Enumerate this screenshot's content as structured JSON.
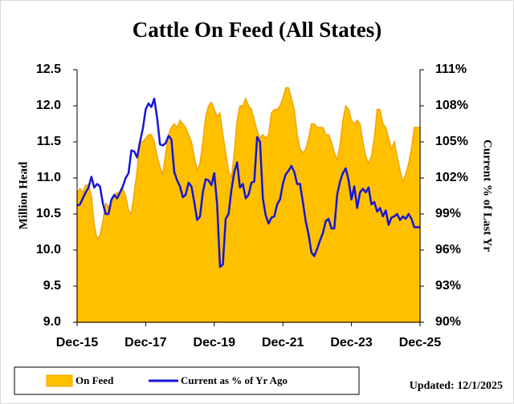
{
  "chart_data": {
    "type": "combo",
    "title": "Cattle On Feed (All States)",
    "y_label": "Million Head",
    "y2_label": "Current % of Last Yr",
    "note": "Updated: 12/1/2025",
    "categories": [
      "Dec-15",
      null,
      null,
      null,
      null,
      null,
      null,
      null,
      null,
      null,
      null,
      null,
      null,
      null,
      null,
      null,
      null,
      null,
      null,
      null,
      null,
      null,
      null,
      null,
      "Dec-17",
      null,
      null,
      null,
      null,
      null,
      null,
      null,
      null,
      null,
      null,
      null,
      null,
      null,
      null,
      null,
      null,
      null,
      null,
      null,
      null,
      null,
      null,
      null,
      "Dec-19",
      null,
      null,
      null,
      null,
      null,
      null,
      null,
      null,
      null,
      null,
      null,
      null,
      null,
      null,
      null,
      null,
      null,
      null,
      null,
      null,
      null,
      null,
      null,
      "Dec-21",
      null,
      null,
      null,
      null,
      null,
      null,
      null,
      null,
      null,
      null,
      null,
      null,
      null,
      null,
      null,
      null,
      null,
      null,
      null,
      null,
      null,
      null,
      null,
      "Dec-23",
      null,
      null,
      null,
      null,
      null,
      null,
      null,
      null,
      null,
      null,
      null,
      null,
      null,
      null,
      null,
      null,
      null,
      null,
      null,
      null,
      null,
      null,
      null,
      "Dec-25"
    ],
    "ylim": [
      9,
      12.5
    ],
    "yticks": [
      {
        "value": 9,
        "label": "9.0"
      },
      9.5,
      {
        "value": 10,
        "label": "10.0"
      },
      10.5,
      {
        "value": 11,
        "label": "11.0"
      },
      11.5,
      {
        "value": 12,
        "label": "12.0"
      },
      12.5
    ],
    "y2lim": [
      90,
      111
    ],
    "y2ticks": [
      {
        "value": 90,
        "label": "90%"
      },
      {
        "value": 93,
        "label": "93%"
      },
      {
        "value": 96,
        "label": "96%"
      },
      {
        "value": 99,
        "label": "99%"
      },
      {
        "value": 102,
        "label": "102%"
      },
      {
        "value": 105,
        "label": "105%"
      },
      {
        "value": 108,
        "label": "108%"
      },
      {
        "value": 111,
        "label": "111%"
      }
    ],
    "series": [
      {
        "name": "On Feed",
        "type": "area",
        "color": "#FFC000",
        "edge_color": "#F4A300",
        "values": [
          10.8,
          10.85,
          10.8,
          10.9,
          10.9,
          10.75,
          10.35,
          10.15,
          10.2,
          10.4,
          10.65,
          10.6,
          10.65,
          10.75,
          10.8,
          10.75,
          10.85,
          10.75,
          10.55,
          10.5,
          10.8,
          11.1,
          11.5,
          11.5,
          11.55,
          11.6,
          11.6,
          11.5,
          11.3,
          11.15,
          11.05,
          11.35,
          11.6,
          11.7,
          11.75,
          11.7,
          11.8,
          11.75,
          11.7,
          11.6,
          11.5,
          11.3,
          11.1,
          11.2,
          11.5,
          11.85,
          12.0,
          12.05,
          11.95,
          11.85,
          11.9,
          11.6,
          11.35,
          11.1,
          11.0,
          11.35,
          11.8,
          12.0,
          12.0,
          12.1,
          12.0,
          11.95,
          11.8,
          11.65,
          11.55,
          11.6,
          11.55,
          11.6,
          11.9,
          11.95,
          11.95,
          12.0,
          12.1,
          12.25,
          12.25,
          12.1,
          11.95,
          11.6,
          11.4,
          11.35,
          11.4,
          11.55,
          11.75,
          11.75,
          11.7,
          11.7,
          11.7,
          11.6,
          11.6,
          11.5,
          11.35,
          11.25,
          11.45,
          11.8,
          12.0,
          11.95,
          11.8,
          11.75,
          11.8,
          11.75,
          11.5,
          11.3,
          11.2,
          11.3,
          11.55,
          11.95,
          11.95,
          11.75,
          11.7,
          11.55,
          11.4,
          11.5,
          11.3,
          11.1,
          10.95,
          11.05,
          11.2,
          11.4,
          11.7,
          11.7,
          11.7
        ]
      },
      {
        "name": "Current as % of Yr Ago",
        "type": "line",
        "axis": "y2",
        "color": "#1515D8",
        "values": [
          99.7,
          99.8,
          100.3,
          100.8,
          101.2,
          102.1,
          101.2,
          101.5,
          101.3,
          99.9,
          99.0,
          99.0,
          100.2,
          100.6,
          100.3,
          100.8,
          101.3,
          102.0,
          102.4,
          104.3,
          104.2,
          103.7,
          105.0,
          106.1,
          107.7,
          108.2,
          107.9,
          108.6,
          107.0,
          104.8,
          104.7,
          104.9,
          105.5,
          105.2,
          102.5,
          101.8,
          101.3,
          100.4,
          100.6,
          101.6,
          101.3,
          100.0,
          98.5,
          98.8,
          100.8,
          101.9,
          101.8,
          101.4,
          102.4,
          99.8,
          94.6,
          94.8,
          98.6,
          99.0,
          101.0,
          102.5,
          103.3,
          101.2,
          101.5,
          100.3,
          100.6,
          101.6,
          101.7,
          105.4,
          105.0,
          100.3,
          98.9,
          98.2,
          98.7,
          98.8,
          99.8,
          100.2,
          101.5,
          102.3,
          102.6,
          103.0,
          102.5,
          101.5,
          101.5,
          100.0,
          98.4,
          97.3,
          95.8,
          95.5,
          96.1,
          96.8,
          97.4,
          98.4,
          98.6,
          97.8,
          97.8,
          100.6,
          101.7,
          102.4,
          102.8,
          101.8,
          100.2,
          101.3,
          99.5,
          100.8,
          101.1,
          100.8,
          101.2,
          99.8,
          100.0,
          99.2,
          99.5,
          98.8,
          99.3,
          98.1,
          98.7,
          98.8,
          99.0,
          98.5,
          98.8,
          98.6,
          99.0,
          98.6,
          97.9,
          97.9,
          97.9
        ]
      }
    ]
  }
}
